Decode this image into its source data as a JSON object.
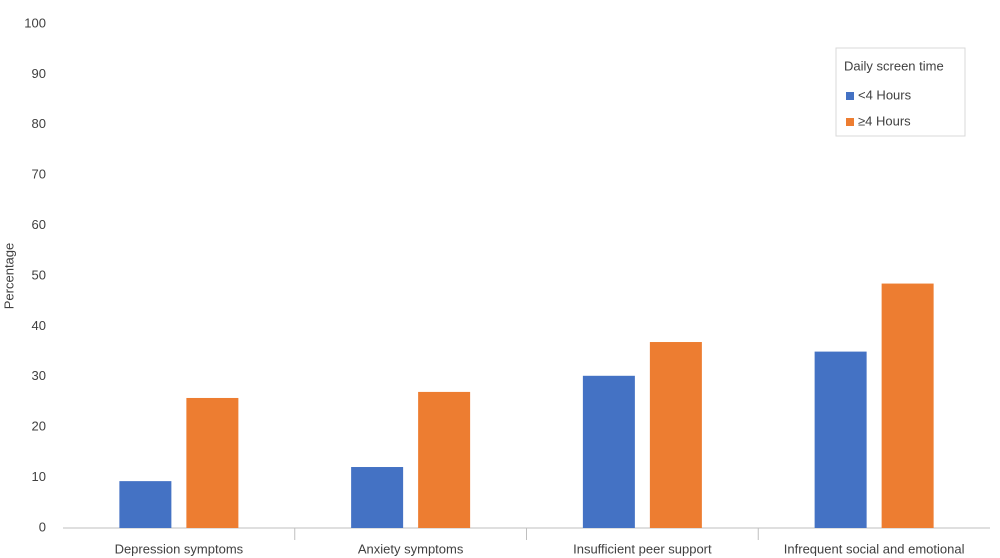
{
  "chart_data": {
    "type": "bar",
    "categories": [
      "Depression symptoms",
      "Anxiety symptoms",
      "Insufficient peer support",
      "Infrequent social and emotional"
    ],
    "series": [
      {
        "name": "<4 Hours",
        "color": "#4472c4",
        "values": [
          9.3,
          12.1,
          30.2,
          35.0
        ]
      },
      {
        "name": "≥4 Hours",
        "color": "#ed7d31",
        "values": [
          25.8,
          27.0,
          36.9,
          48.5
        ]
      }
    ],
    "ylabel": "Percentage",
    "legend_title": "Daily screen time",
    "legend_position": "upper right",
    "ylim": [
      0,
      100
    ],
    "yticks": [
      0,
      10,
      20,
      30,
      40,
      50,
      60,
      70,
      80,
      90,
      100
    ],
    "grid": false
  }
}
